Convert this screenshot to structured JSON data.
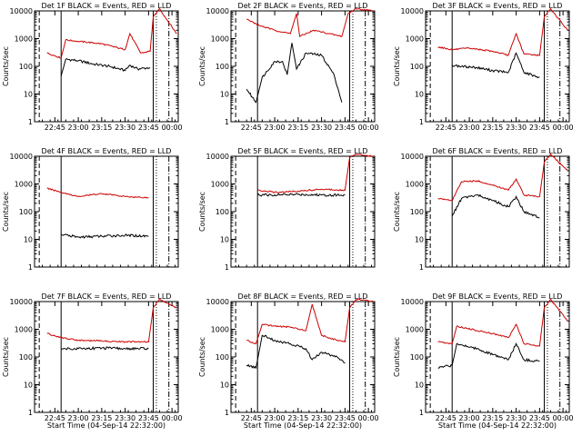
{
  "chart_data": [
    {
      "type": "line",
      "title": "Det 1F BLACK = Events, RED = LLD",
      "xlabel": "",
      "ylabel": "Counts/sec",
      "yscale": "log",
      "ylim": [
        1,
        10000
      ],
      "xticks": [
        "22:45",
        "23:00",
        "23:15",
        "23:30",
        "23:45",
        "00:00"
      ],
      "series": [
        {
          "name": "Events",
          "color": "#000000",
          "x": [
            "22:49",
            "22:52",
            "23:00",
            "23:10",
            "23:20",
            "23:30",
            "23:33",
            "23:38",
            "23:46"
          ],
          "values": [
            45,
            180,
            160,
            120,
            100,
            70,
            110,
            80,
            90
          ]
        },
        {
          "name": "LLD",
          "color": "#cc0000",
          "x": [
            "22:40",
            "22:49",
            "22:52",
            "23:00",
            "23:15",
            "23:30",
            "23:33",
            "23:40",
            "23:46",
            "23:48",
            "23:52",
            "00:03"
          ],
          "values": [
            300,
            200,
            900,
            800,
            650,
            400,
            1500,
            300,
            350,
            6000,
            12000,
            1500
          ]
        }
      ]
    },
    {
      "type": "line",
      "title": "Det 2F BLACK = Events, RED = LLD",
      "xlabel": "",
      "ylabel": "Counts/sec",
      "yscale": "log",
      "ylim": [
        1,
        10000
      ],
      "xticks": [
        "22:45",
        "23:00",
        "23:15",
        "23:30",
        "23:45",
        "00:00"
      ],
      "series": [
        {
          "name": "Events",
          "color": "#000000",
          "x": [
            "22:42",
            "22:48",
            "22:52",
            "23:00",
            "23:05",
            "23:08",
            "23:11",
            "23:14",
            "23:20",
            "23:30",
            "23:38",
            "23:43"
          ],
          "values": [
            15,
            5,
            40,
            150,
            150,
            50,
            700,
            80,
            300,
            250,
            50,
            5
          ]
        },
        {
          "name": "LLD",
          "color": "#cc0000",
          "x": [
            "22:42",
            "22:50",
            "23:00",
            "23:10",
            "23:14",
            "23:16",
            "23:25",
            "23:35",
            "23:43",
            "23:47",
            "23:52",
            "00:03"
          ],
          "values": [
            5000,
            3000,
            2000,
            1500,
            8000,
            1200,
            2000,
            1500,
            1200,
            8000,
            12000,
            10000
          ]
        }
      ]
    },
    {
      "type": "line",
      "title": "Det 3F BLACK = Events, RED = LLD",
      "xlabel": "",
      "ylabel": "Counts/sec",
      "yscale": "log",
      "ylim": [
        1,
        10000
      ],
      "xticks": [
        "22:45",
        "23:00",
        "23:15",
        "23:30",
        "23:45",
        "00:00"
      ],
      "series": [
        {
          "name": "Events",
          "color": "#000000",
          "x": [
            "22:49",
            "22:55",
            "23:05",
            "23:15",
            "23:25",
            "23:30",
            "23:35",
            "23:45"
          ],
          "values": [
            110,
            100,
            90,
            70,
            60,
            300,
            60,
            40
          ]
        },
        {
          "name": "LLD",
          "color": "#cc0000",
          "x": [
            "22:40",
            "22:49",
            "23:00",
            "23:15",
            "23:25",
            "23:30",
            "23:35",
            "23:45",
            "23:48",
            "23:52",
            "00:03"
          ],
          "values": [
            500,
            400,
            450,
            350,
            250,
            1500,
            280,
            250,
            6000,
            12000,
            2000
          ]
        }
      ]
    },
    {
      "type": "line",
      "title": "Det 4F BLACK = Events, RED = LLD",
      "xlabel": "",
      "ylabel": "Counts/sec",
      "yscale": "log",
      "ylim": [
        1,
        10000
      ],
      "xticks": [],
      "series": [
        {
          "name": "Events",
          "color": "#000000",
          "x": [
            "22:49",
            "23:00",
            "23:15",
            "23:30",
            "23:45"
          ],
          "values": [
            15,
            12,
            13,
            14,
            13
          ]
        },
        {
          "name": "LLD",
          "color": "#cc0000",
          "x": [
            "22:40",
            "22:49",
            "23:00",
            "23:15",
            "23:30",
            "23:45"
          ],
          "values": [
            700,
            500,
            350,
            450,
            350,
            320
          ]
        }
      ]
    },
    {
      "type": "line",
      "title": "Det 5F BLACK = Events, RED = LLD",
      "xlabel": "",
      "ylabel": "Counts/sec",
      "yscale": "log",
      "ylim": [
        1,
        10000
      ],
      "xticks": [],
      "series": [
        {
          "name": "Events",
          "color": "#000000",
          "x": [
            "22:49",
            "23:00",
            "23:15",
            "23:30",
            "23:45"
          ],
          "values": [
            400,
            400,
            420,
            400,
            400
          ]
        },
        {
          "name": "LLD",
          "color": "#cc0000",
          "x": [
            "22:49",
            "23:00",
            "23:15",
            "23:30",
            "23:45",
            "23:48",
            "23:52",
            "00:03"
          ],
          "values": [
            600,
            500,
            550,
            650,
            600,
            9000,
            12000,
            10000
          ]
        }
      ]
    },
    {
      "type": "line",
      "title": "Det 6F BLACK = Events, RED = LLD",
      "xlabel": "",
      "ylabel": "Counts/sec",
      "yscale": "log",
      "ylim": [
        1,
        10000
      ],
      "xticks": [],
      "series": [
        {
          "name": "Events",
          "color": "#000000",
          "x": [
            "22:49",
            "22:55",
            "23:05",
            "23:15",
            "23:25",
            "23:30",
            "23:35",
            "23:45"
          ],
          "values": [
            70,
            300,
            400,
            250,
            150,
            350,
            100,
            60
          ]
        },
        {
          "name": "LLD",
          "color": "#cc0000",
          "x": [
            "22:40",
            "22:49",
            "22:55",
            "23:05",
            "23:15",
            "23:25",
            "23:30",
            "23:35",
            "23:45",
            "23:48",
            "23:52",
            "00:03"
          ],
          "values": [
            300,
            250,
            1200,
            1300,
            900,
            600,
            1500,
            400,
            350,
            6000,
            12000,
            3000
          ]
        }
      ]
    },
    {
      "type": "line",
      "title": "Det 7F BLACK = Events, RED = LLD",
      "xlabel": "Start Time (04-Sep-14 22:32:00)",
      "ylabel": "Counts/sec",
      "yscale": "log",
      "ylim": [
        1,
        10000
      ],
      "xticks": [
        "22:45",
        "23:00",
        "23:15",
        "23:30",
        "23:45",
        "00:00"
      ],
      "series": [
        {
          "name": "Events",
          "color": "#000000",
          "x": [
            "22:49",
            "23:00",
            "23:15",
            "23:30",
            "23:45"
          ],
          "values": [
            200,
            200,
            210,
            200,
            200
          ]
        },
        {
          "name": "LLD",
          "color": "#cc0000",
          "x": [
            "22:40",
            "22:49",
            "23:00",
            "23:15",
            "23:30",
            "23:45",
            "23:48",
            "23:52",
            "00:03"
          ],
          "values": [
            700,
            500,
            400,
            380,
            350,
            350,
            6000,
            12000,
            6000
          ]
        }
      ]
    },
    {
      "type": "line",
      "title": "Det 8F BLACK = Events, RED = LLD",
      "xlabel": "Start Time (04-Sep-14 22:32:00)",
      "ylabel": "Counts/sec",
      "yscale": "log",
      "ylim": [
        1,
        10000
      ],
      "xticks": [
        "22:45",
        "23:00",
        "23:15",
        "23:30",
        "23:45",
        "00:00"
      ],
      "series": [
        {
          "name": "Events",
          "color": "#000000",
          "x": [
            "22:42",
            "22:48",
            "22:52",
            "23:00",
            "23:10",
            "23:20",
            "23:24",
            "23:30",
            "23:40",
            "23:45"
          ],
          "values": [
            50,
            40,
            600,
            400,
            300,
            200,
            80,
            150,
            100,
            60
          ]
        },
        {
          "name": "LLD",
          "color": "#cc0000",
          "x": [
            "22:42",
            "22:48",
            "22:52",
            "23:00",
            "23:10",
            "23:20",
            "23:24",
            "23:30",
            "23:40",
            "23:45",
            "23:48",
            "23:52",
            "00:03"
          ],
          "values": [
            400,
            300,
            1500,
            1300,
            1200,
            900,
            8000,
            600,
            400,
            350,
            6000,
            12000,
            10000
          ]
        }
      ]
    },
    {
      "type": "line",
      "title": "Det 9F BLACK = Events, RED = LLD",
      "xlabel": "Start Time (04-Sep-14 22:32:00)",
      "ylabel": "Counts/sec",
      "yscale": "log",
      "ylim": [
        1,
        10000
      ],
      "xticks": [
        "22:45",
        "23:00",
        "23:15",
        "23:30",
        "23:45",
        "00:00"
      ],
      "series": [
        {
          "name": "Events",
          "color": "#000000",
          "x": [
            "22:40",
            "22:49",
            "22:52",
            "23:05",
            "23:15",
            "23:25",
            "23:30",
            "23:35",
            "23:45"
          ],
          "values": [
            40,
            50,
            300,
            200,
            120,
            80,
            300,
            80,
            70
          ]
        },
        {
          "name": "LLD",
          "color": "#cc0000",
          "x": [
            "22:40",
            "22:49",
            "22:52",
            "23:05",
            "23:15",
            "23:25",
            "23:30",
            "23:35",
            "23:45",
            "23:48",
            "23:52",
            "00:03"
          ],
          "values": [
            350,
            300,
            1300,
            900,
            700,
            500,
            1500,
            300,
            250,
            6000,
            12000,
            2000
          ]
        }
      ]
    }
  ]
}
